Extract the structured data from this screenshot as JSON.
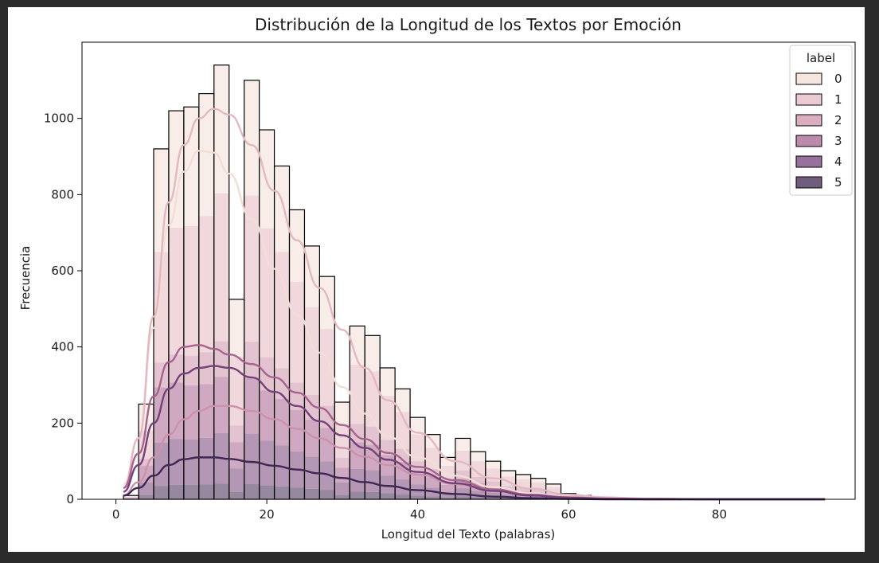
{
  "chart_data": {
    "type": "histogram",
    "title": "Distribución de la Longitud de los Textos por Emoción",
    "xlabel": "Longitud del Texto (palabras)",
    "ylabel": "Frecuencia",
    "xlim": [
      -4.5,
      98
    ],
    "ylim": [
      0,
      1200
    ],
    "x_ticks": [
      "0",
      "20",
      "40",
      "60",
      "80"
    ],
    "x_tick_values": [
      0,
      20,
      40,
      60,
      80
    ],
    "y_ticks": [
      "0",
      "200",
      "400",
      "600",
      "800",
      "1000"
    ],
    "y_tick_values": [
      0,
      200,
      400,
      600,
      800,
      1000
    ],
    "bin_edges": [
      1,
      3,
      5,
      7,
      9,
      11,
      13,
      15,
      17,
      19,
      21,
      23,
      25,
      27,
      29,
      31,
      33,
      35,
      37,
      39,
      41,
      43,
      45,
      47,
      49,
      51,
      53,
      55,
      57,
      59,
      61,
      63
    ],
    "stacked_totals": [
      10,
      250,
      920,
      1020,
      1030,
      1065,
      1140,
      525,
      1100,
      970,
      875,
      760,
      665,
      585,
      255,
      455,
      430,
      345,
      290,
      215,
      170,
      110,
      160,
      125,
      100,
      75,
      65,
      55,
      40,
      15,
      10
    ],
    "legend": {
      "title": "label",
      "placement": "top-right",
      "entries": [
        "0",
        "1",
        "2",
        "3",
        "4",
        "5"
      ]
    },
    "series": [
      {
        "name": "0",
        "color": "#f2ded5",
        "kde_x": [
          1,
          3,
          5,
          7,
          9,
          11,
          13,
          15,
          18,
          21,
          24,
          27,
          30,
          33,
          36,
          40,
          45,
          50,
          55,
          60,
          65,
          70,
          80,
          94
        ],
        "kde_y": [
          40,
          160,
          450,
          720,
          860,
          915,
          910,
          855,
          735,
          605,
          485,
          385,
          295,
          225,
          165,
          110,
          62,
          32,
          16,
          7,
          3,
          1,
          0,
          0
        ]
      },
      {
        "name": "1",
        "color": "#e4b8c1",
        "kde_x": [
          1,
          3,
          5,
          7,
          9,
          11,
          13,
          15,
          18,
          21,
          24,
          27,
          30,
          33,
          36,
          40,
          45,
          50,
          55,
          60,
          65,
          70,
          80,
          94
        ],
        "kde_y": [
          30,
          160,
          480,
          780,
          930,
          1000,
          1025,
          1010,
          930,
          810,
          680,
          555,
          445,
          345,
          260,
          175,
          100,
          55,
          28,
          12,
          5,
          2,
          0,
          0
        ]
      },
      {
        "name": "2",
        "color": "#cd91ab",
        "kde_x": [
          1,
          3,
          5,
          7,
          9,
          11,
          13,
          15,
          18,
          21,
          24,
          27,
          30,
          33,
          36,
          40,
          45,
          50,
          55,
          60,
          65,
          70,
          80,
          94
        ],
        "kde_y": [
          10,
          45,
          110,
          170,
          210,
          232,
          245,
          245,
          232,
          210,
          185,
          160,
          135,
          112,
          90,
          65,
          40,
          22,
          12,
          5,
          2,
          1,
          0,
          0
        ]
      },
      {
        "name": "3",
        "color": "#a6638e",
        "kde_x": [
          1,
          3,
          5,
          7,
          9,
          11,
          13,
          15,
          18,
          21,
          24,
          27,
          30,
          33,
          36,
          40,
          45,
          50,
          55,
          60,
          65,
          70,
          80,
          94
        ],
        "kde_y": [
          30,
          120,
          270,
          360,
          400,
          405,
          395,
          380,
          355,
          320,
          280,
          240,
          195,
          158,
          122,
          85,
          50,
          26,
          12,
          5,
          2,
          1,
          0,
          0
        ]
      },
      {
        "name": "4",
        "color": "#744279",
        "kde_x": [
          1,
          3,
          5,
          7,
          9,
          11,
          13,
          15,
          18,
          21,
          24,
          27,
          30,
          33,
          36,
          40,
          45,
          50,
          55,
          60,
          65,
          70,
          80,
          94
        ],
        "kde_y": [
          20,
          90,
          200,
          290,
          330,
          345,
          350,
          345,
          320,
          282,
          245,
          205,
          168,
          135,
          104,
          72,
          42,
          22,
          10,
          4,
          1,
          0,
          0,
          0
        ]
      },
      {
        "name": "5",
        "color": "#3f2751",
        "kde_x": [
          1,
          3,
          5,
          7,
          9,
          11,
          13,
          15,
          18,
          21,
          24,
          27,
          30,
          33,
          36,
          40,
          45,
          50,
          55,
          60,
          65,
          70,
          80,
          94
        ],
        "kde_y": [
          10,
          30,
          62,
          90,
          105,
          110,
          110,
          106,
          98,
          88,
          78,
          68,
          56,
          45,
          35,
          24,
          14,
          7,
          3,
          1,
          0,
          0,
          0,
          0
        ]
      }
    ]
  }
}
